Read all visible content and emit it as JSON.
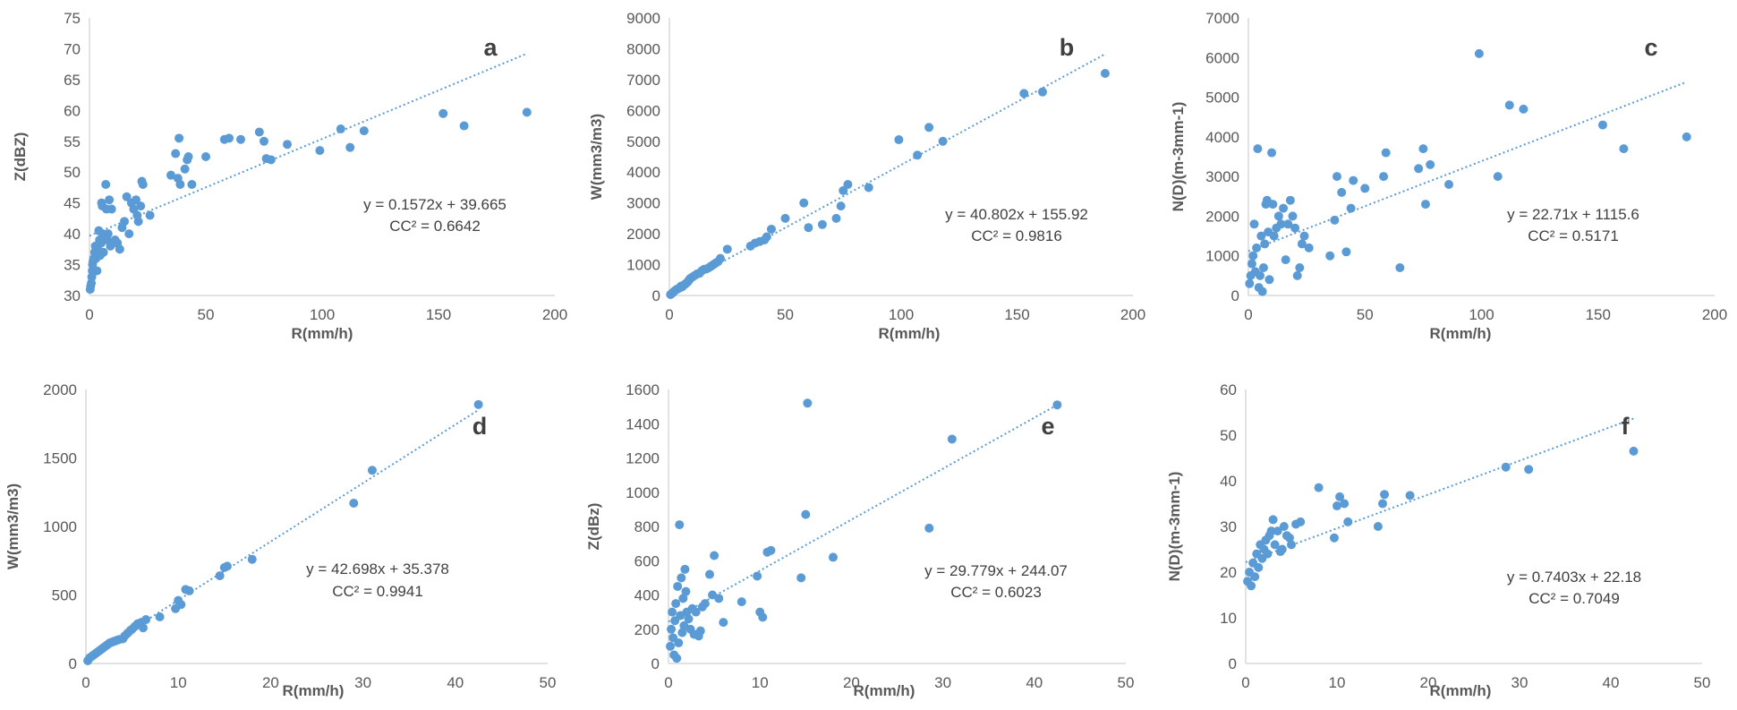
{
  "chart_data": [
    {
      "type": "scatter",
      "panel_label": "a",
      "xlabel": "R(mm/h)",
      "ylabel": "Z(dBZ)",
      "xlim": [
        0,
        200
      ],
      "ylim": [
        30,
        75
      ],
      "xticks": [
        "0",
        "50",
        "100",
        "150",
        "200"
      ],
      "yticks": [
        "30",
        "35",
        "40",
        "45",
        "50",
        "55",
        "60",
        "65",
        "70",
        "75"
      ],
      "grid": false,
      "trendline": {
        "slope": 0.1572,
        "intercept": 39.665,
        "x_range": [
          0,
          188
        ]
      },
      "equation": "y = 0.1572x + 39.665",
      "cc_label": "CC² = 0.6642",
      "points": [
        [
          0.3,
          31
        ],
        [
          0.5,
          31.5
        ],
        [
          0.8,
          32
        ],
        [
          1,
          33
        ],
        [
          1.2,
          34
        ],
        [
          1.3,
          35
        ],
        [
          1.5,
          35.5
        ],
        [
          1.8,
          36
        ],
        [
          2,
          34
        ],
        [
          2.2,
          37
        ],
        [
          2.5,
          38
        ],
        [
          2.8,
          36
        ],
        [
          3,
          37.5
        ],
        [
          3.2,
          34
        ],
        [
          3.5,
          38
        ],
        [
          3.8,
          37
        ],
        [
          4,
          40.5
        ],
        [
          4.3,
          39
        ],
        [
          4.6,
          36.5
        ],
        [
          5,
          38.5
        ],
        [
          5.2,
          45
        ],
        [
          5.5,
          44.5
        ],
        [
          5.8,
          40
        ],
        [
          6,
          37
        ],
        [
          6.5,
          39.5
        ],
        [
          7,
          48
        ],
        [
          7.3,
          44
        ],
        [
          7.6,
          39
        ],
        [
          8,
          40
        ],
        [
          8.5,
          45.5
        ],
        [
          9,
          38
        ],
        [
          9.5,
          44
        ],
        [
          10,
          38.5
        ],
        [
          11,
          39
        ],
        [
          12,
          38.5
        ],
        [
          13,
          37.5
        ],
        [
          14,
          41
        ],
        [
          15,
          42
        ],
        [
          16,
          46
        ],
        [
          17,
          40
        ],
        [
          18,
          45
        ],
        [
          19,
          44
        ],
        [
          20,
          45.5
        ],
        [
          20.5,
          43
        ],
        [
          21,
          42
        ],
        [
          22,
          44.5
        ],
        [
          23,
          48
        ],
        [
          22.5,
          48.5
        ],
        [
          26,
          43
        ],
        [
          35,
          49.5
        ],
        [
          37,
          53
        ],
        [
          38,
          49
        ],
        [
          38.5,
          55.5
        ],
        [
          39,
          48
        ],
        [
          41,
          50.5
        ],
        [
          42,
          52
        ],
        [
          42.5,
          52.5
        ],
        [
          44,
          48
        ],
        [
          50,
          52.5
        ],
        [
          58,
          55.3
        ],
        [
          60,
          55.5
        ],
        [
          65,
          55.3
        ],
        [
          73,
          56.5
        ],
        [
          75,
          55
        ],
        [
          76,
          52.2
        ],
        [
          78,
          52
        ],
        [
          85,
          54.5
        ],
        [
          99,
          53.5
        ],
        [
          108,
          57
        ],
        [
          112,
          54
        ],
        [
          118,
          56.7
        ],
        [
          152,
          59.5
        ],
        [
          161,
          57.5
        ],
        [
          188,
          59.7
        ]
      ]
    },
    {
      "type": "scatter",
      "panel_label": "b",
      "xlabel": "R(mm/h)",
      "ylabel": "W(mm3/m3)",
      "xlim": [
        0,
        200
      ],
      "ylim": [
        0,
        9000
      ],
      "xticks": [
        "0",
        "50",
        "100",
        "150",
        "200"
      ],
      "yticks": [
        "0",
        "1000",
        "2000",
        "3000",
        "4000",
        "5000",
        "6000",
        "7000",
        "8000",
        "9000"
      ],
      "grid": false,
      "trendline": {
        "slope": 40.802,
        "intercept": 155.92,
        "x_range": [
          0,
          188
        ]
      },
      "equation": "y = 40.802x + 155.92",
      "cc_label": "CC² = 0.9816",
      "points": [
        [
          0.5,
          30
        ],
        [
          1,
          60
        ],
        [
          1.5,
          90
        ],
        [
          2,
          130
        ],
        [
          2.5,
          160
        ],
        [
          3,
          190
        ],
        [
          3.5,
          210
        ],
        [
          4,
          230
        ],
        [
          4.5,
          250
        ],
        [
          5,
          300
        ],
        [
          5.5,
          280
        ],
        [
          6,
          320
        ],
        [
          6.5,
          350
        ],
        [
          7,
          380
        ],
        [
          7.5,
          410
        ],
        [
          8,
          450
        ],
        [
          8.5,
          500
        ],
        [
          9,
          550
        ],
        [
          10,
          600
        ],
        [
          11,
          650
        ],
        [
          12,
          700
        ],
        [
          13,
          720
        ],
        [
          14,
          800
        ],
        [
          15,
          850
        ],
        [
          16,
          860
        ],
        [
          17,
          900
        ],
        [
          18,
          950
        ],
        [
          19,
          1000
        ],
        [
          20,
          1050
        ],
        [
          21,
          1100
        ],
        [
          22,
          1200
        ],
        [
          25,
          1500
        ],
        [
          35,
          1600
        ],
        [
          37,
          1700
        ],
        [
          39,
          1750
        ],
        [
          41,
          1800
        ],
        [
          42,
          1900
        ],
        [
          44,
          2150
        ],
        [
          50,
          2500
        ],
        [
          58,
          3000
        ],
        [
          60,
          2200
        ],
        [
          66,
          2300
        ],
        [
          72,
          2500
        ],
        [
          74,
          2900
        ],
        [
          75,
          3400
        ],
        [
          77,
          3600
        ],
        [
          86,
          3500
        ],
        [
          99,
          5050
        ],
        [
          107,
          4550
        ],
        [
          112,
          5450
        ],
        [
          118,
          5000
        ],
        [
          153,
          6550
        ],
        [
          161,
          6600
        ],
        [
          188,
          7200
        ]
      ]
    },
    {
      "type": "scatter",
      "panel_label": "c",
      "xlabel": "R(mm/h)",
      "ylabel": "N(D)(m-3mm-1)",
      "xlim": [
        0,
        200
      ],
      "ylim": [
        0,
        7000
      ],
      "xticks": [
        "0",
        "50",
        "100",
        "150",
        "200"
      ],
      "yticks": [
        "0",
        "1000",
        "2000",
        "3000",
        "4000",
        "5000",
        "6000",
        "7000"
      ],
      "grid": false,
      "trendline": {
        "slope": 22.71,
        "intercept": 1115.6,
        "x_range": [
          0,
          188
        ]
      },
      "equation": "y = 22.71x + 1115.6",
      "cc_label": "CC² = 0.5171",
      "points": [
        [
          0.5,
          300
        ],
        [
          1,
          500
        ],
        [
          1.5,
          800
        ],
        [
          2,
          1000
        ],
        [
          2.5,
          1800
        ],
        [
          3,
          600
        ],
        [
          3.5,
          1200
        ],
        [
          4,
          3700
        ],
        [
          4.5,
          200
        ],
        [
          5,
          500
        ],
        [
          5.5,
          1500
        ],
        [
          6,
          100
        ],
        [
          6.5,
          700
        ],
        [
          7,
          1300
        ],
        [
          7.5,
          2300
        ],
        [
          8,
          2400
        ],
        [
          8.5,
          1600
        ],
        [
          9,
          400
        ],
        [
          10,
          3600
        ],
        [
          10.5,
          2300
        ],
        [
          11,
          1500
        ],
        [
          12,
          1700
        ],
        [
          13,
          2000
        ],
        [
          14,
          1800
        ],
        [
          15,
          2200
        ],
        [
          16,
          900
        ],
        [
          17,
          1800
        ],
        [
          18,
          2400
        ],
        [
          19,
          2000
        ],
        [
          20,
          1700
        ],
        [
          21,
          500
        ],
        [
          22,
          700
        ],
        [
          23,
          1300
        ],
        [
          24,
          1500
        ],
        [
          26,
          1200
        ],
        [
          35,
          1000
        ],
        [
          37,
          1900
        ],
        [
          38,
          3000
        ],
        [
          40,
          2600
        ],
        [
          42,
          1100
        ],
        [
          44,
          2200
        ],
        [
          45,
          2900
        ],
        [
          50,
          2700
        ],
        [
          58,
          3000
        ],
        [
          59,
          3600
        ],
        [
          65,
          700
        ],
        [
          73,
          3200
        ],
        [
          75,
          3700
        ],
        [
          76,
          2300
        ],
        [
          78,
          3300
        ],
        [
          86,
          2800
        ],
        [
          99,
          6100
        ],
        [
          107,
          3000
        ],
        [
          112,
          4800
        ],
        [
          118,
          4700
        ],
        [
          152,
          4300
        ],
        [
          161,
          3700
        ],
        [
          188,
          4000
        ]
      ]
    },
    {
      "type": "scatter",
      "panel_label": "d",
      "xlabel": "R(mm/h)",
      "ylabel": "W(mm3/m3)",
      "xlim": [
        0,
        50
      ],
      "ylim": [
        0,
        2000
      ],
      "xticks": [
        "0",
        "10",
        "20",
        "30",
        "40",
        "50"
      ],
      "yticks": [
        "0",
        "500",
        "1000",
        "1500",
        "2000"
      ],
      "grid": false,
      "trendline": {
        "slope": 42.698,
        "intercept": 35.378,
        "x_range": [
          0,
          42.5
        ]
      },
      "equation": "y = 42.698x + 35.378",
      "cc_label": "CC² = 0.9941",
      "points": [
        [
          0.2,
          20
        ],
        [
          0.4,
          40
        ],
        [
          0.6,
          50
        ],
        [
          0.8,
          60
        ],
        [
          1,
          70
        ],
        [
          1.2,
          80
        ],
        [
          1.4,
          90
        ],
        [
          1.6,
          100
        ],
        [
          1.8,
          110
        ],
        [
          2,
          120
        ],
        [
          2.2,
          130
        ],
        [
          2.4,
          140
        ],
        [
          2.6,
          150
        ],
        [
          2.8,
          155
        ],
        [
          3,
          160
        ],
        [
          3.2,
          165
        ],
        [
          3.4,
          170
        ],
        [
          3.6,
          175
        ],
        [
          4,
          180
        ],
        [
          4.2,
          200
        ],
        [
          4.5,
          220
        ],
        [
          4.8,
          240
        ],
        [
          5,
          250
        ],
        [
          5.3,
          270
        ],
        [
          5.6,
          290
        ],
        [
          6,
          300
        ],
        [
          6.2,
          260
        ],
        [
          6.5,
          320
        ],
        [
          8,
          340
        ],
        [
          9.7,
          400
        ],
        [
          10,
          460
        ],
        [
          10.3,
          430
        ],
        [
          10.8,
          540
        ],
        [
          11.2,
          530
        ],
        [
          14.5,
          640
        ],
        [
          15,
          700
        ],
        [
          15.3,
          710
        ],
        [
          18,
          760
        ],
        [
          29,
          1170
        ],
        [
          31,
          1410
        ],
        [
          42.5,
          1890
        ]
      ]
    },
    {
      "type": "scatter",
      "panel_label": "e",
      "xlabel": "R(mm/h)",
      "ylabel": "Z(dBz)",
      "xlim": [
        0,
        50
      ],
      "ylim": [
        0,
        1600
      ],
      "xticks": [
        "0",
        "10",
        "20",
        "30",
        "40",
        "50"
      ],
      "yticks": [
        "0",
        "200",
        "400",
        "600",
        "800",
        "1000",
        "1200",
        "1400",
        "1600"
      ],
      "grid": false,
      "trendline": {
        "slope": 29.779,
        "intercept": 244.07,
        "x_range": [
          0,
          42.5
        ]
      },
      "equation": "y = 29.779x + 244.07",
      "cc_label": "CC² = 0.6023",
      "points": [
        [
          0.2,
          100
        ],
        [
          0.3,
          200
        ],
        [
          0.4,
          300
        ],
        [
          0.5,
          150
        ],
        [
          0.6,
          50
        ],
        [
          0.7,
          250
        ],
        [
          0.8,
          350
        ],
        [
          0.9,
          30
        ],
        [
          1,
          450
        ],
        [
          1.1,
          120
        ],
        [
          1.2,
          810
        ],
        [
          1.3,
          280
        ],
        [
          1.4,
          500
        ],
        [
          1.5,
          180
        ],
        [
          1.6,
          380
        ],
        [
          1.7,
          220
        ],
        [
          1.8,
          550
        ],
        [
          1.9,
          420
        ],
        [
          2,
          300
        ],
        [
          2.2,
          260
        ],
        [
          2.4,
          200
        ],
        [
          2.6,
          320
        ],
        [
          2.8,
          170
        ],
        [
          3,
          300
        ],
        [
          3.3,
          160
        ],
        [
          3.5,
          190
        ],
        [
          3.7,
          330
        ],
        [
          4,
          350
        ],
        [
          4.5,
          520
        ],
        [
          4.8,
          400
        ],
        [
          5,
          630
        ],
        [
          5.5,
          380
        ],
        [
          6,
          240
        ],
        [
          8,
          360
        ],
        [
          9.7,
          510
        ],
        [
          10,
          300
        ],
        [
          10.3,
          270
        ],
        [
          10.8,
          650
        ],
        [
          11.2,
          660
        ],
        [
          14.5,
          500
        ],
        [
          15,
          870
        ],
        [
          15.2,
          1520
        ],
        [
          18,
          620
        ],
        [
          28.5,
          790
        ],
        [
          31,
          1310
        ],
        [
          42.5,
          1510
        ]
      ]
    },
    {
      "type": "scatter",
      "panel_label": "f",
      "xlabel": "R(mm/h)",
      "ylabel": "N(D)(m-3mm-1)",
      "xlim": [
        0,
        50
      ],
      "ylim": [
        0,
        60
      ],
      "xticks": [
        "0",
        "10",
        "20",
        "30",
        "40",
        "50"
      ],
      "yticks": [
        "0",
        "10",
        "20",
        "30",
        "40",
        "50",
        "60"
      ],
      "grid": false,
      "trendline": {
        "slope": 0.7403,
        "intercept": 22.18,
        "x_range": [
          0,
          42.5
        ]
      },
      "equation": "y = 0.7403x + 22.18",
      "cc_label": "CC² = 0.7049",
      "points": [
        [
          0.2,
          18
        ],
        [
          0.4,
          20
        ],
        [
          0.6,
          17
        ],
        [
          0.8,
          22
        ],
        [
          1,
          19
        ],
        [
          1.2,
          24
        ],
        [
          1.4,
          21
        ],
        [
          1.6,
          26
        ],
        [
          1.8,
          23
        ],
        [
          2,
          25
        ],
        [
          2.2,
          27
        ],
        [
          2.4,
          24
        ],
        [
          2.6,
          28
        ],
        [
          2.8,
          29
        ],
        [
          3,
          31.5
        ],
        [
          3.2,
          26
        ],
        [
          3.5,
          29
        ],
        [
          3.8,
          24.5
        ],
        [
          4,
          25
        ],
        [
          4.2,
          30
        ],
        [
          4.5,
          28
        ],
        [
          4.8,
          27.5
        ],
        [
          5,
          26
        ],
        [
          5.5,
          30.5
        ],
        [
          6,
          31
        ],
        [
          8,
          38.5
        ],
        [
          9.7,
          27.5
        ],
        [
          10,
          34.5
        ],
        [
          10.3,
          36.5
        ],
        [
          10.8,
          35
        ],
        [
          11.2,
          31
        ],
        [
          14.5,
          30
        ],
        [
          15,
          35
        ],
        [
          15.2,
          37
        ],
        [
          18,
          36.8
        ],
        [
          28.5,
          43
        ],
        [
          31,
          42.5
        ],
        [
          42.5,
          46.5
        ]
      ]
    }
  ]
}
